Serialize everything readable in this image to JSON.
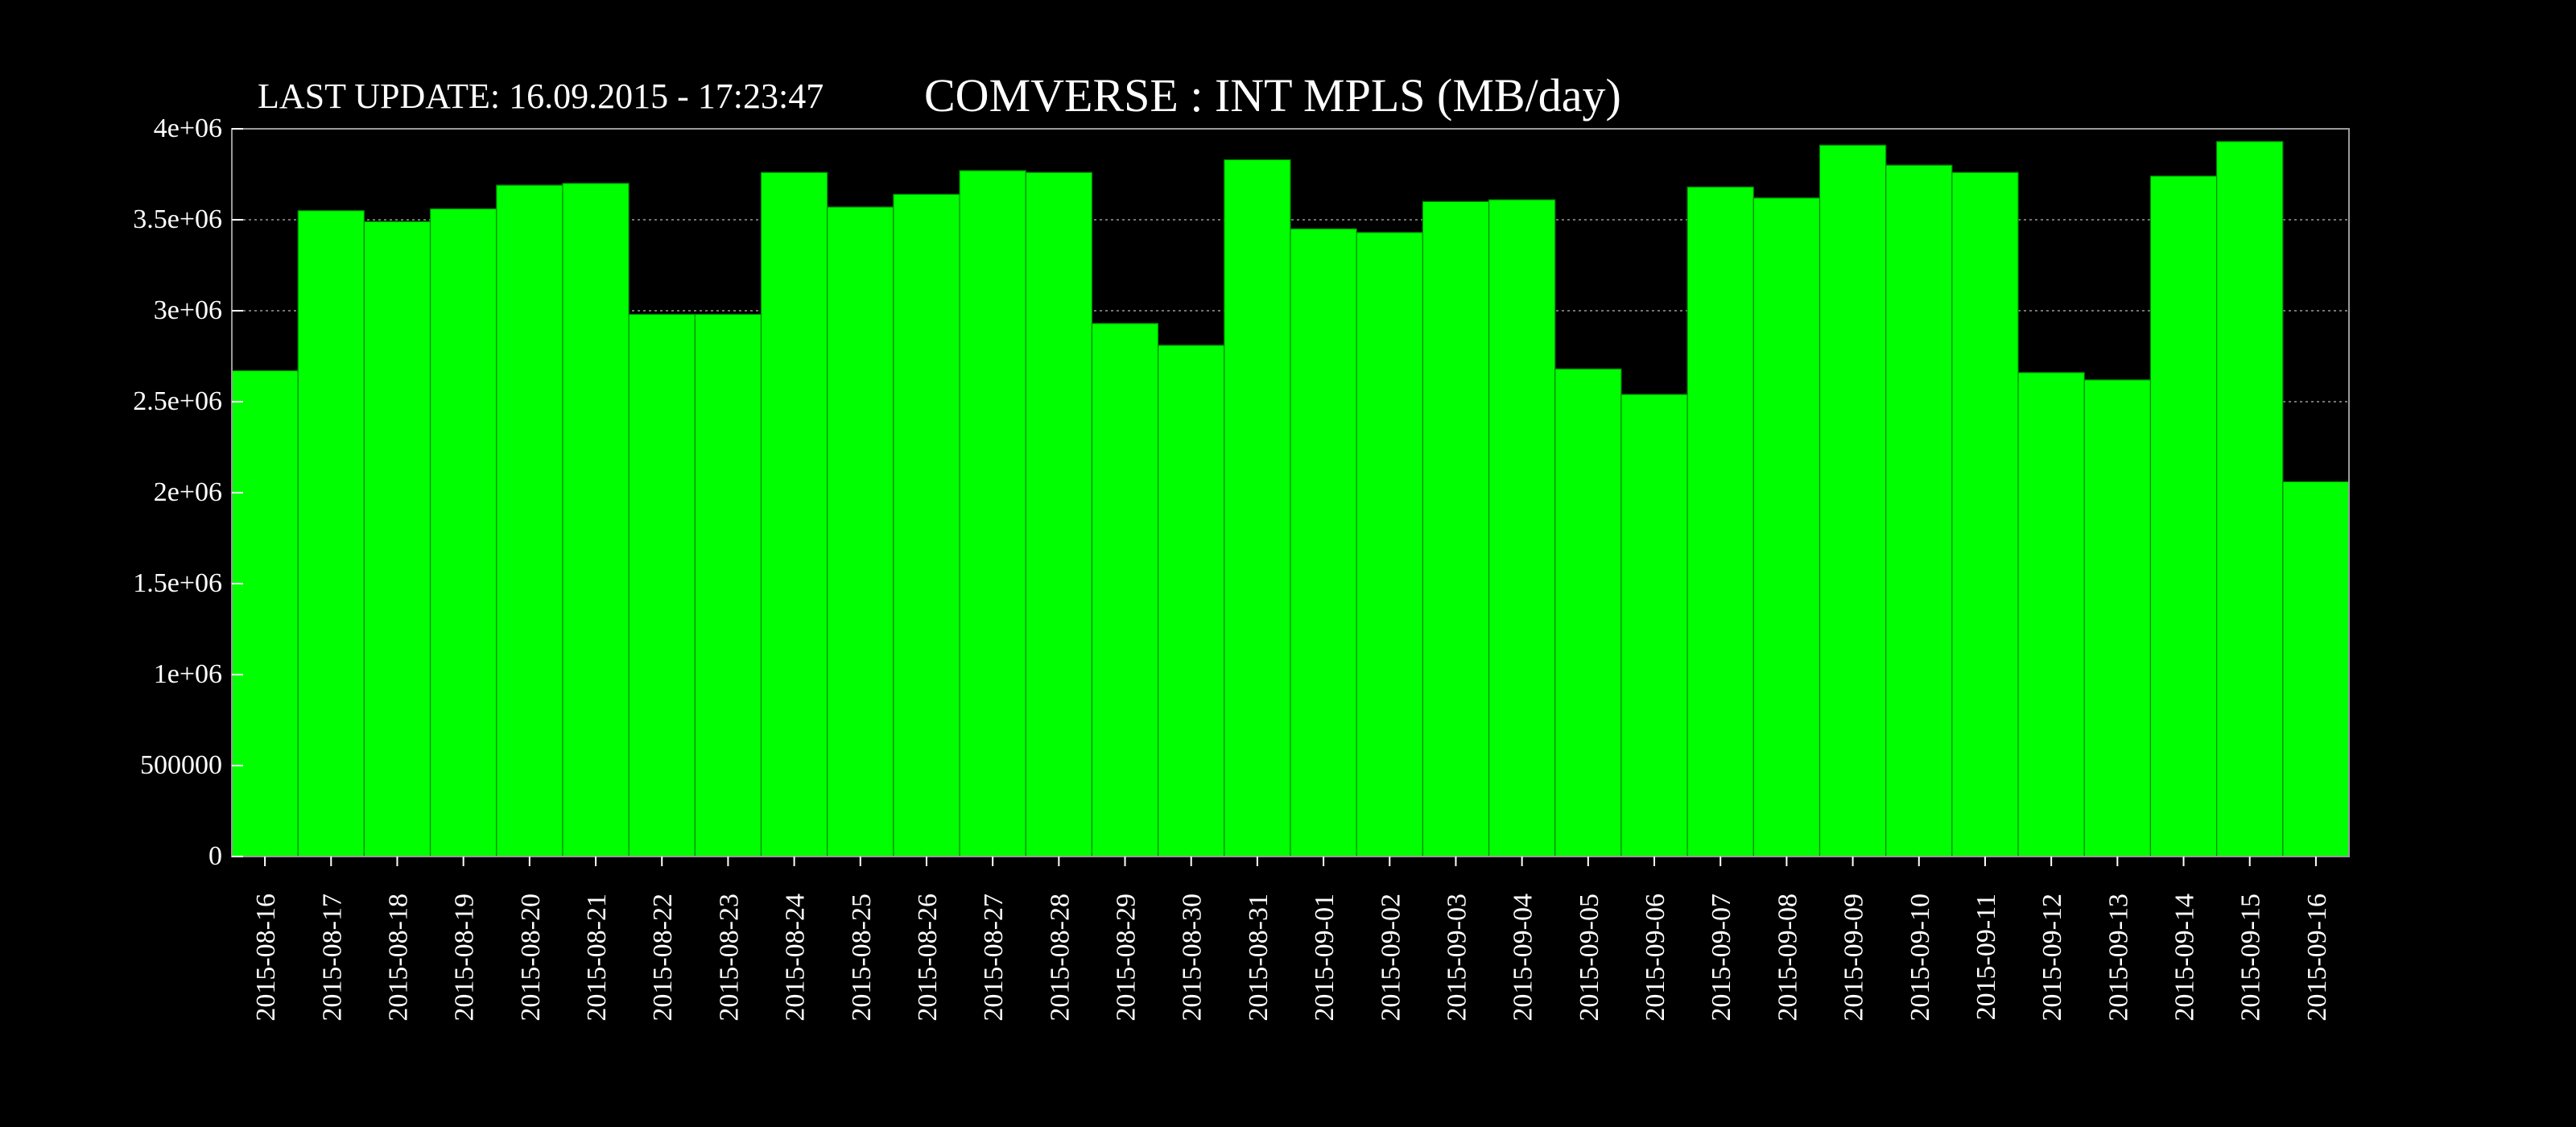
{
  "header": {
    "last_update": "LAST UPDATE: 16.09.2015 - 17:23:47"
  },
  "colors": {
    "background": "#000000",
    "bar_fill": "#00ff00",
    "bar_edge": "#008800",
    "text": "#ffffff",
    "grid": "#9a9a9a"
  },
  "chart_data": {
    "type": "bar",
    "title": "COMVERSE : INT MPLS (MB/day)",
    "xlabel": "",
    "ylabel": "",
    "ylim": [
      0,
      4000000
    ],
    "grid": true,
    "yticks": [
      0,
      500000,
      1000000,
      1500000,
      2000000,
      2500000,
      3000000,
      3500000,
      4000000
    ],
    "ytick_labels": [
      "0",
      "500000",
      "1e+06",
      "1.5e+06",
      "2e+06",
      "2.5e+06",
      "3e+06",
      "3.5e+06",
      "4e+06"
    ],
    "categories": [
      "2015-08-16",
      "2015-08-17",
      "2015-08-18",
      "2015-08-19",
      "2015-08-20",
      "2015-08-21",
      "2015-08-22",
      "2015-08-23",
      "2015-08-24",
      "2015-08-25",
      "2015-08-26",
      "2015-08-27",
      "2015-08-28",
      "2015-08-29",
      "2015-08-30",
      "2015-08-31",
      "2015-09-01",
      "2015-09-02",
      "2015-09-03",
      "2015-09-04",
      "2015-09-05",
      "2015-09-06",
      "2015-09-07",
      "2015-09-08",
      "2015-09-09",
      "2015-09-10",
      "2015-09-11",
      "2015-09-12",
      "2015-09-13",
      "2015-09-14",
      "2015-09-15",
      "2015-09-16"
    ],
    "values": [
      2670000,
      3550000,
      3490000,
      3560000,
      3690000,
      3700000,
      2980000,
      2980000,
      3760000,
      3570000,
      3640000,
      3770000,
      3760000,
      2930000,
      2810000,
      3830000,
      3450000,
      3430000,
      3600000,
      3610000,
      2680000,
      2540000,
      3680000,
      3620000,
      3910000,
      3800000,
      3760000,
      2660000,
      2620000,
      3740000,
      3930000,
      2060000
    ]
  }
}
